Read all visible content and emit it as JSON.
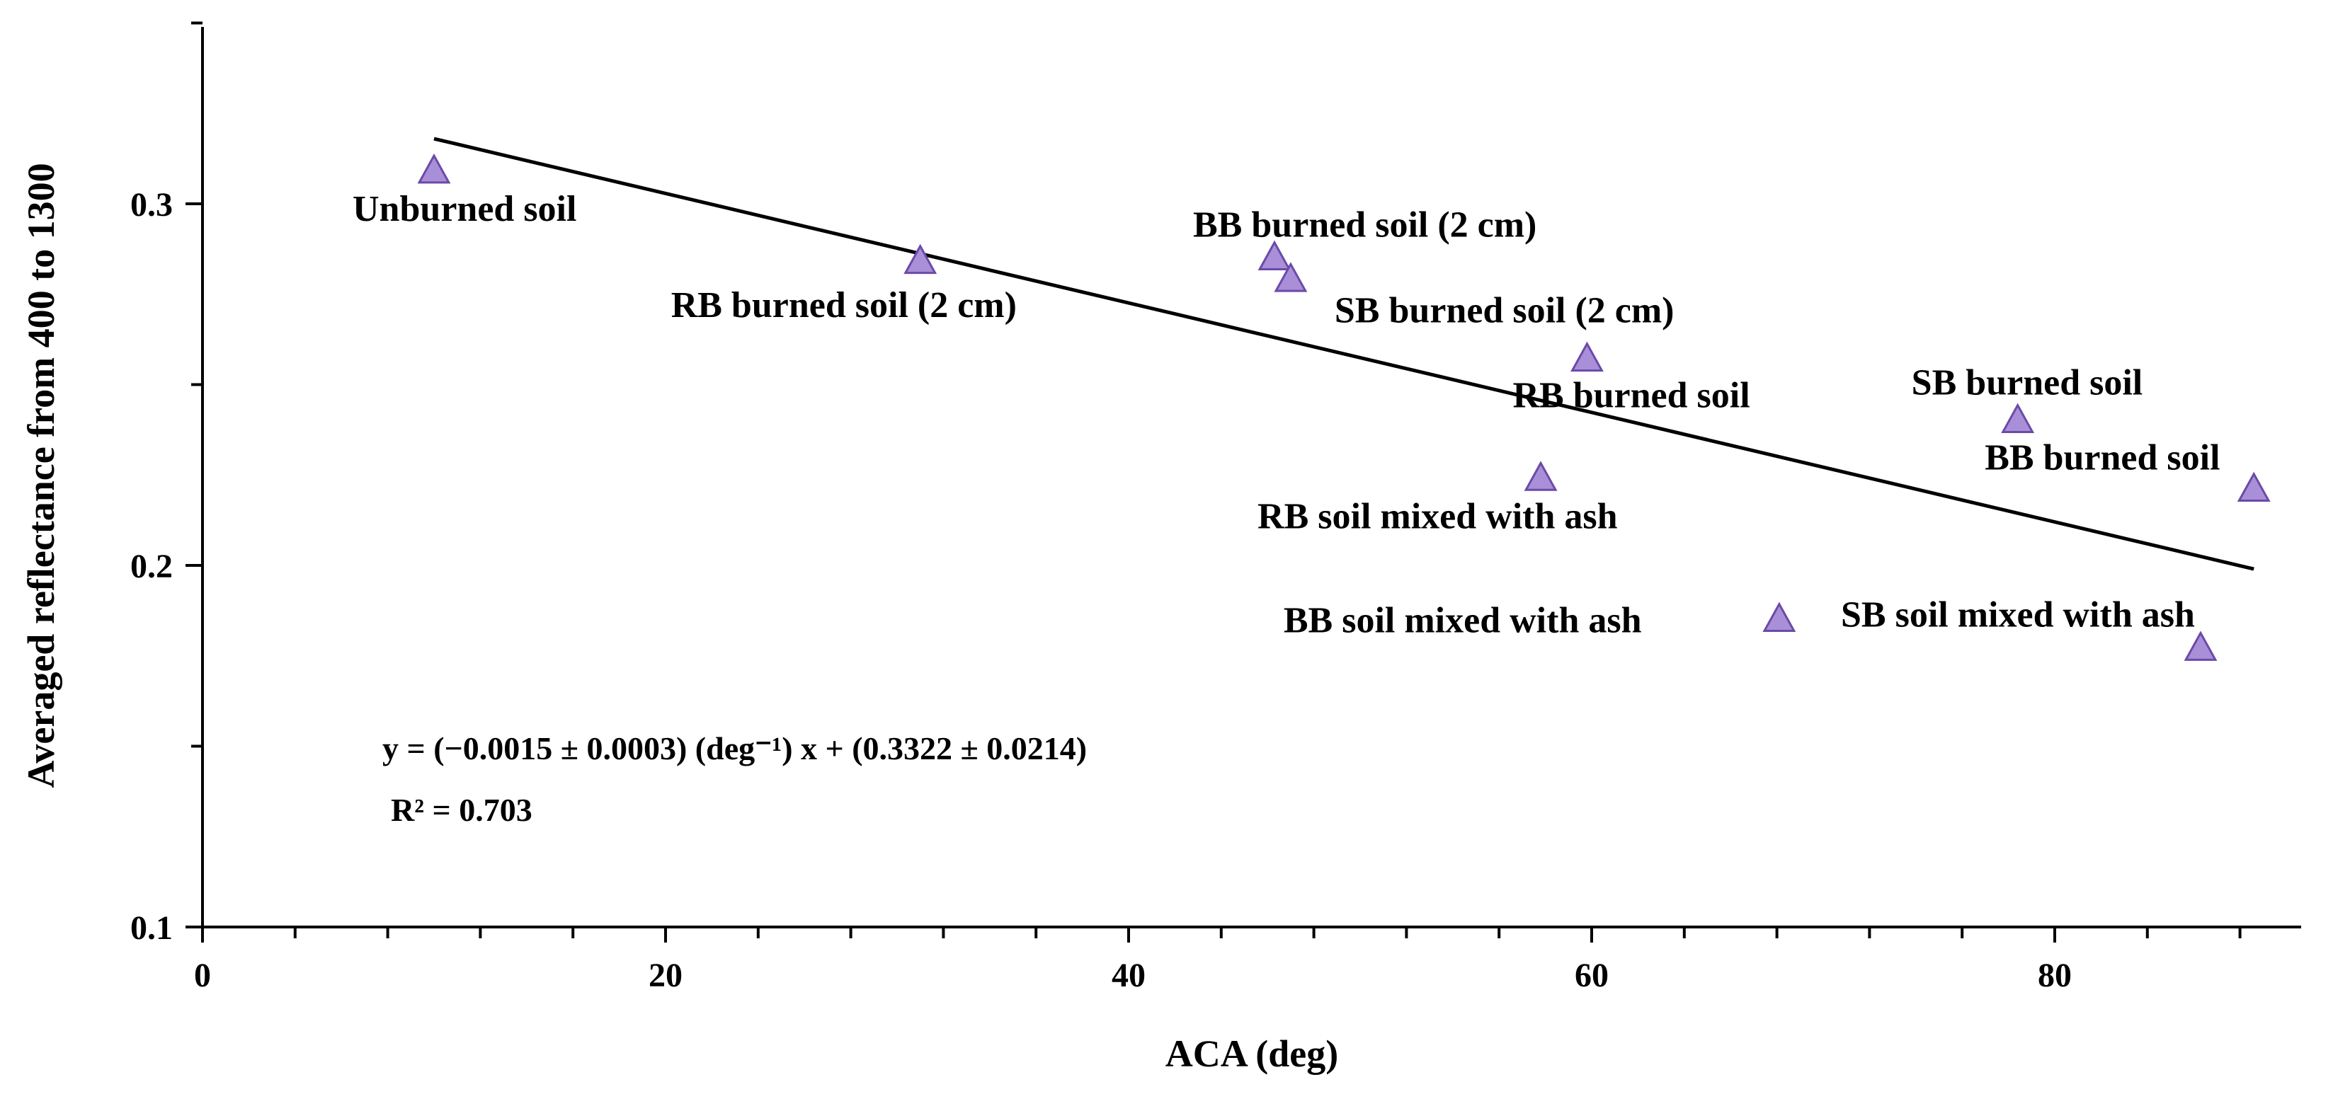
{
  "chart_data": {
    "type": "scatter",
    "title": "",
    "xlabel": "ACA (deg)",
    "ylabel": "Averaged reflectance from 400 to 1300",
    "xlim": [
      0,
      90
    ],
    "ylim": [
      0.1,
      0.35
    ],
    "x_ticks": [
      0,
      20,
      40,
      60,
      80
    ],
    "x_tick_labels": [
      "0",
      "20",
      "40",
      "60",
      "80"
    ],
    "x_minor_step": 4,
    "y_ticks": [
      0.1,
      0.2,
      0.3
    ],
    "y_tick_labels": [
      "0.1",
      "0.2",
      "0.3"
    ],
    "y_minor_step": 0.05,
    "grid": false,
    "marker": "triangle",
    "marker_color": "#a98fd8",
    "marker_edge_color": "#6b4aa8",
    "points": [
      {
        "x": 10.0,
        "y": 0.309,
        "label": "Unburned soil"
      },
      {
        "x": 31.0,
        "y": 0.284,
        "label": "RB burned soil (2 cm)"
      },
      {
        "x": 46.3,
        "y": 0.285,
        "label": "BB burned soil (2 cm)"
      },
      {
        "x": 47.0,
        "y": 0.279,
        "label": "SB burned soil (2 cm)"
      },
      {
        "x": 59.8,
        "y": 0.257,
        "label": "RB burned soil"
      },
      {
        "x": 78.4,
        "y": 0.24,
        "label": "SB burned soil"
      },
      {
        "x": 88.6,
        "y": 0.221,
        "label": "BB burned soil"
      },
      {
        "x": 57.8,
        "y": 0.224,
        "label": "RB soil mixed with ash"
      },
      {
        "x": 68.1,
        "y": 0.185,
        "label": "BB soil mixed with ash"
      },
      {
        "x": 86.3,
        "y": 0.177,
        "label": "SB soil mixed with ash"
      }
    ],
    "fit_line": {
      "slope": -0.0015,
      "intercept": 0.3322,
      "x_range": [
        10.0,
        88.6
      ],
      "y_range": [
        0.318,
        0.199
      ],
      "color": "#000000"
    },
    "annotations": {
      "equation": "y = (−0.0015 ± 0.0003) (deg⁻¹) x + (0.3322 ± 0.0214)",
      "r_squared": "R² = 0.703"
    }
  }
}
